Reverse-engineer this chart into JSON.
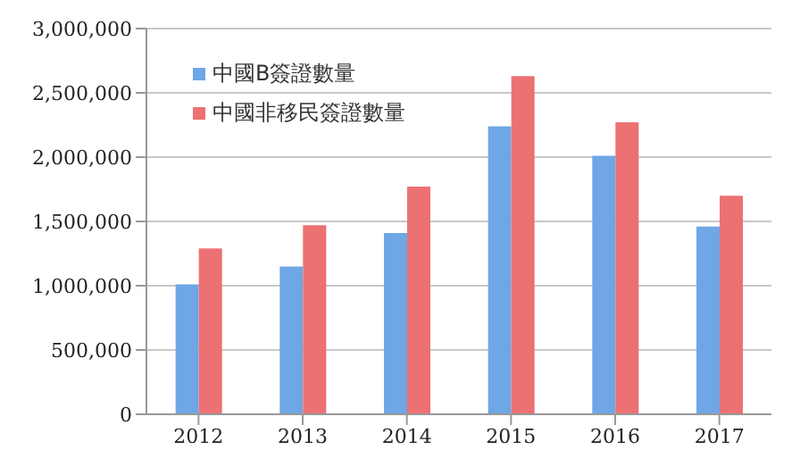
{
  "chart_data": {
    "type": "bar",
    "categories": [
      "2012",
      "2013",
      "2014",
      "2015",
      "2016",
      "2017"
    ],
    "series": [
      {
        "name": "中國B簽證數量",
        "color": "#6fa6e6",
        "values": [
          1010000,
          1150000,
          1410000,
          2240000,
          2010000,
          1460000
        ]
      },
      {
        "name": "中國非移民簽證數量",
        "color": "#ec7173",
        "values": [
          1290000,
          1470000,
          1770000,
          2630000,
          2270000,
          1700000
        ]
      }
    ],
    "ylim": [
      0,
      3000000
    ],
    "yticks": [
      0,
      {
        "value": 500000,
        "label": "500,000"
      },
      {
        "value": 1000000,
        "label": "1,000,000"
      },
      {
        "value": 1500000,
        "label": "1,500,000"
      },
      {
        "value": 2000000,
        "label": "2,000,000"
      },
      {
        "value": 2500000,
        "label": "2,500,000"
      },
      {
        "value": 3000000,
        "label": "3,000,000"
      }
    ],
    "grid": "y",
    "legend": "top left"
  }
}
